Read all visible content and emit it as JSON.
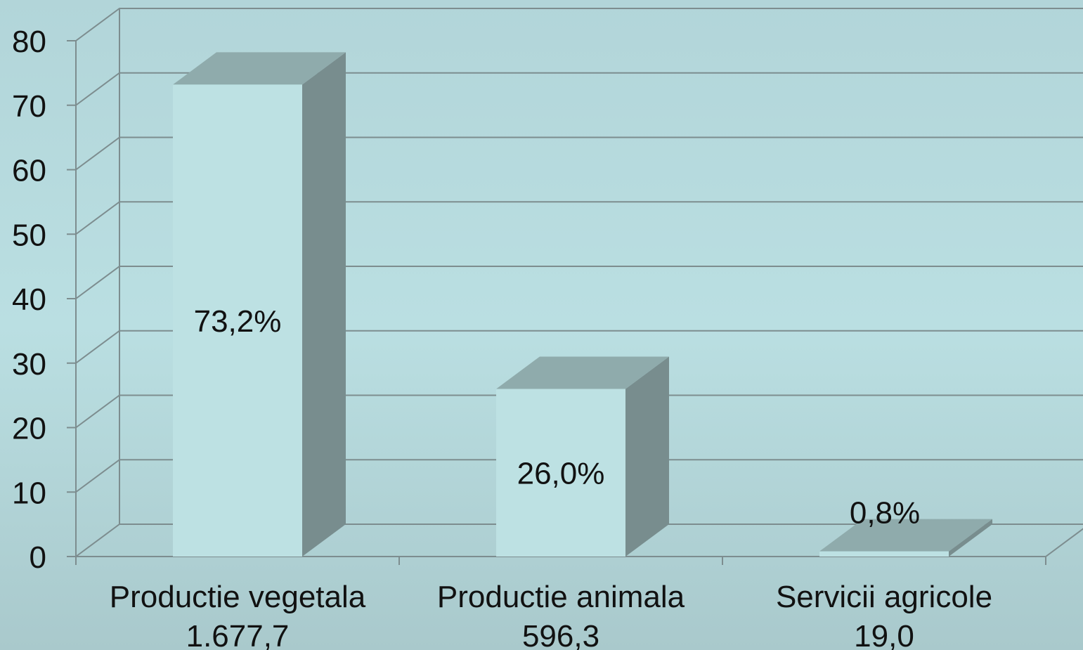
{
  "chart_data": {
    "type": "bar3d",
    "categories": [
      [
        "Productie vegetala",
        "1.677,7"
      ],
      [
        "Productie animala",
        "596,3"
      ],
      [
        "Servicii agricole",
        "19,0"
      ]
    ],
    "values": [
      73.2,
      26.0,
      0.8
    ],
    "value_labels": [
      "73,2%",
      "26,0%",
      "0,8%"
    ],
    "ylim": [
      0,
      80
    ],
    "yticks": [
      0,
      10,
      20,
      30,
      40,
      50,
      60,
      70,
      80
    ],
    "grid": true,
    "colors": {
      "front": "#bde1e3",
      "top": "#8fabac",
      "side": "#788d8e"
    }
  }
}
